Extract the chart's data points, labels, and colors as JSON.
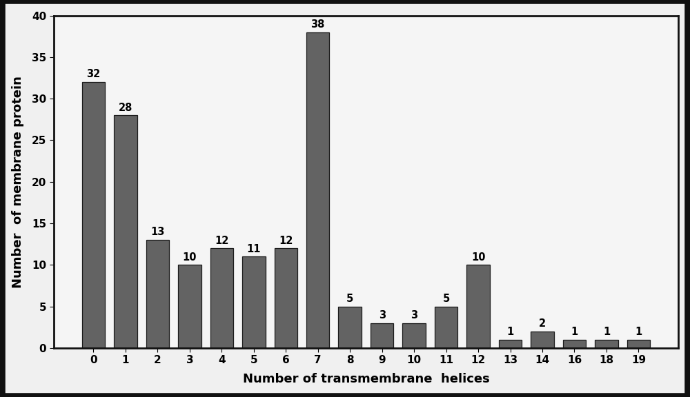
{
  "categories": [
    0,
    1,
    2,
    3,
    4,
    5,
    6,
    7,
    8,
    9,
    10,
    11,
    12,
    13,
    14,
    16,
    18,
    19
  ],
  "values": [
    32,
    28,
    13,
    10,
    12,
    11,
    12,
    38,
    5,
    3,
    3,
    5,
    10,
    1,
    2,
    1,
    1,
    1
  ],
  "bar_color": "#636363",
  "bar_edgecolor": "#1a1a1a",
  "background_color": "#f5f5f5",
  "figure_background": "#f0f0f0",
  "outer_border_color": "#111111",
  "xlabel": "Number of transmembrane  helices",
  "ylabel": "Number  of membrane protein",
  "ylim": [
    0,
    40
  ],
  "yticks": [
    0,
    5,
    10,
    15,
    20,
    25,
    30,
    35,
    40
  ],
  "label_fontsize": 13,
  "tick_fontsize": 11,
  "annotation_fontsize": 10.5,
  "bar_width": 0.72,
  "label_fontweight": "bold"
}
